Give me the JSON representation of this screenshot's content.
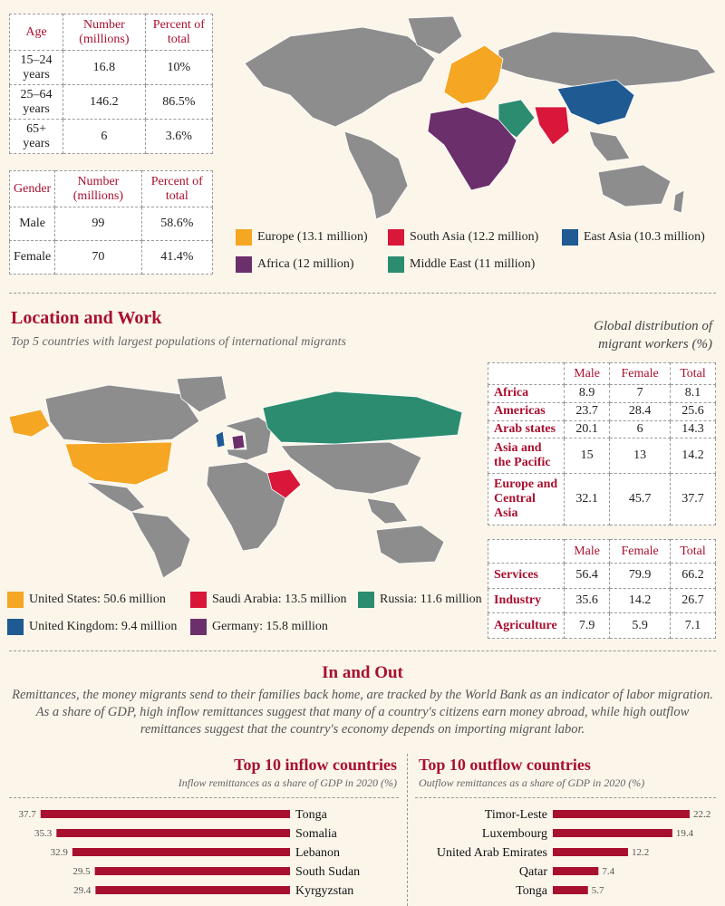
{
  "age_table": {
    "headers": [
      "Age",
      "Number (millions)",
      "Percent of total"
    ],
    "rows": [
      [
        "15–24 years",
        "16.8",
        "10%"
      ],
      [
        "25–64 years",
        "146.2",
        "86.5%"
      ],
      [
        "65+ years",
        "6",
        "3.6%"
      ]
    ]
  },
  "gender_table": {
    "headers": [
      "Gender",
      "Number (millions)",
      "Percent of total"
    ],
    "rows": [
      [
        "Male",
        "99",
        "58.6%"
      ],
      [
        "Female",
        "70",
        "41.4%"
      ]
    ]
  },
  "origin_legend": [
    {
      "label": "Europe (13.1 million)",
      "color": "#f5a623"
    },
    {
      "label": "South Asia (12.2 million)",
      "color": "#d8173a"
    },
    {
      "label": "East Asia (10.3 million)",
      "color": "#1f5a93"
    },
    {
      "label": "Africa (12 million)",
      "color": "#6b2f6b"
    },
    {
      "label": "Middle East (11 million)",
      "color": "#2b8c70"
    }
  ],
  "location": {
    "title": "Location and Work",
    "subtitle": "Top 5 countries with largest populations of international migrants",
    "legend": [
      {
        "label": "United States: 50.6 million",
        "color": "#f5a623"
      },
      {
        "label": "Saudi Arabia: 13.5 million",
        "color": "#d8173a"
      },
      {
        "label": "Russia: 11.6 million",
        "color": "#2b8c70"
      },
      {
        "label": "United Kingdom: 9.4 million",
        "color": "#1f5a93"
      },
      {
        "label": "Germany: 15.8 million",
        "color": "#6b2f6b"
      }
    ]
  },
  "workers": {
    "title_line1": "Global distribution of",
    "title_line2": "migrant workers (%)",
    "region_table": {
      "headers": [
        "",
        "Male",
        "Female",
        "Total"
      ],
      "rows": [
        [
          "Africa",
          "8.9",
          "7",
          "8.1"
        ],
        [
          "Americas",
          "23.7",
          "28.4",
          "25.6"
        ],
        [
          "Arab states",
          "20.1",
          "6",
          "14.3"
        ],
        [
          "Asia and the Pacific",
          "15",
          "13",
          "14.2"
        ],
        [
          "Europe and Central Asia",
          "32.1",
          "45.7",
          "37.7"
        ]
      ]
    },
    "sector_table": {
      "headers": [
        "",
        "Male",
        "Female",
        "Total"
      ],
      "rows": [
        [
          "Services",
          "56.4",
          "79.9",
          "66.2"
        ],
        [
          "Industry",
          "35.6",
          "14.2",
          "26.7"
        ],
        [
          "Agriculture",
          "7.9",
          "5.9",
          "7.1"
        ]
      ]
    }
  },
  "inout": {
    "title": "In and Out",
    "body": "Remittances, the money migrants send to their families back home, are tracked by the World Bank as an indicator of labor migration. As a share of GDP, high inflow remittances suggest that many of a country's citizens earn money abroad, while high outflow remittances suggest that the country's economy depends on importing migrant labor."
  },
  "chart_data": [
    {
      "type": "bar",
      "title": "Top 10 inflow countries",
      "subtitle": "Inflow remittances as a share of GDP in 2020 (%)",
      "categories": [
        "Tonga",
        "Somalia",
        "Lebanon",
        "South Sudan",
        "Kyrgyzstan"
      ],
      "values": [
        37.7,
        35.3,
        32.9,
        29.5,
        29.4
      ],
      "color": "#a8102f",
      "orientation": "horizontal",
      "direction": "leftward"
    },
    {
      "type": "bar",
      "title": "Top 10 outflow countries",
      "subtitle": "Outflow remittances as a share of GDP in 2020 (%)",
      "categories": [
        "Timor-Leste",
        "Luxembourg",
        "United Arab Emirates",
        "Qatar",
        "Tonga"
      ],
      "values": [
        22.2,
        19.4,
        12.2,
        7.4,
        5.7
      ],
      "color": "#a8102f",
      "orientation": "horizontal",
      "direction": "rightward"
    }
  ]
}
